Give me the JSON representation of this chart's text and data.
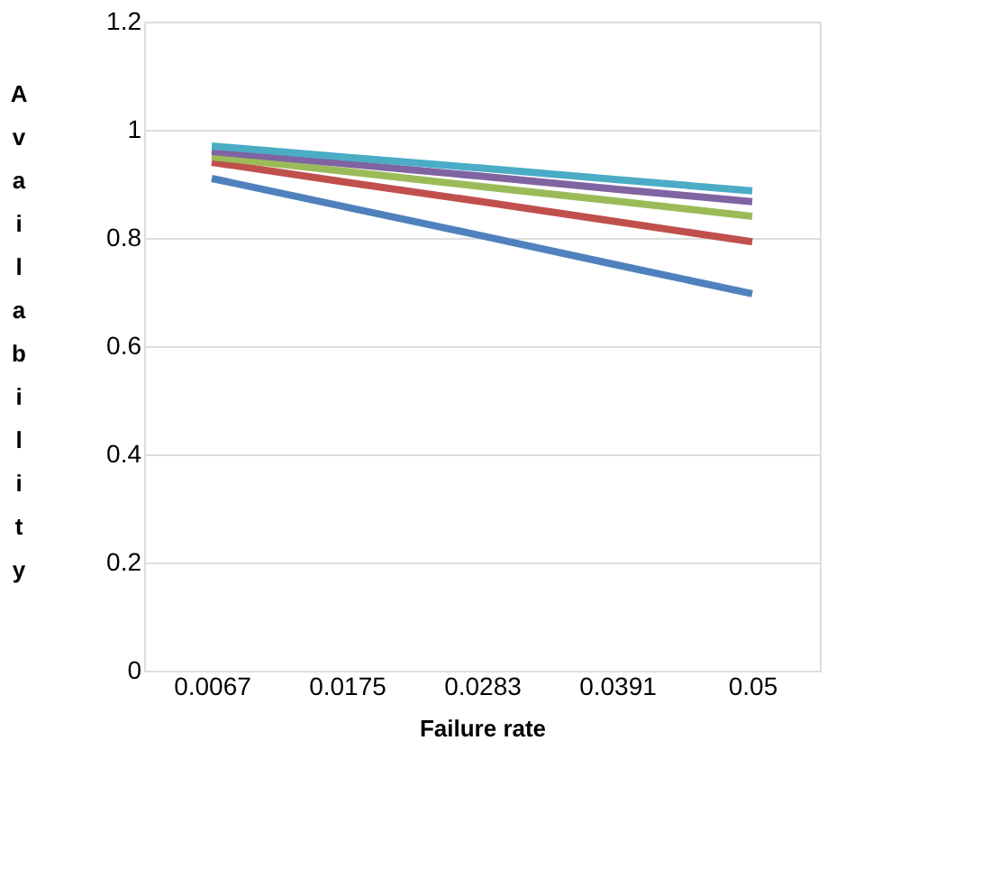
{
  "chart_data": {
    "type": "line",
    "xlabel": "Failure rate",
    "ylabel": "Availability",
    "categories": [
      "0.0067",
      "0.0175",
      "0.0283",
      "0.0391",
      "0.05"
    ],
    "series": [
      {
        "color": "#4f81bd",
        "values": [
          0.91,
          0.857,
          0.804,
          0.75,
          0.697
        ]
      },
      {
        "color": "#c0504d",
        "values": [
          0.94,
          0.903,
          0.867,
          0.83,
          0.793
        ]
      },
      {
        "color": "#9bbb59",
        "values": [
          0.95,
          0.923,
          0.895,
          0.868,
          0.84
        ]
      },
      {
        "color": "#8064a2",
        "values": [
          0.96,
          0.937,
          0.914,
          0.89,
          0.867
        ]
      },
      {
        "color": "#4bacc6",
        "values": [
          0.97,
          0.949,
          0.929,
          0.908,
          0.887
        ]
      }
    ],
    "ylim": [
      0,
      1.2
    ],
    "yticks": [
      0,
      0.2,
      0.4,
      0.6,
      0.8,
      1,
      1.2
    ],
    "grid": "y",
    "legend": false,
    "marker": "none",
    "line_style": "solid"
  }
}
